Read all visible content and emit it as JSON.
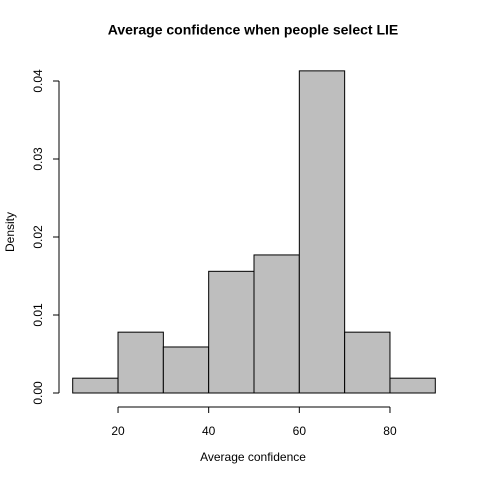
{
  "chart_data": {
    "type": "histogram",
    "title": "Average confidence when people select LIE",
    "xlabel": "Average confidence",
    "ylabel": "Density",
    "bins": [
      10,
      20,
      30,
      40,
      50,
      60,
      70,
      80,
      90
    ],
    "values": [
      0.0019,
      0.0078,
      0.0059,
      0.0156,
      0.0177,
      0.0413,
      0.0078,
      0.0019
    ],
    "color": "#bebebe",
    "xlim": [
      10,
      90
    ],
    "xticks": [
      20,
      40,
      60,
      80
    ],
    "ylim": [
      0,
      0.04
    ],
    "yticks": [
      {
        "value": 0,
        "label": "0.00"
      },
      {
        "value": 0.01,
        "label": "0.01"
      },
      {
        "value": 0.02,
        "label": "0.02"
      },
      {
        "value": 0.03,
        "label": "0.03"
      },
      {
        "value": 0.04,
        "label": "0.04"
      }
    ]
  }
}
